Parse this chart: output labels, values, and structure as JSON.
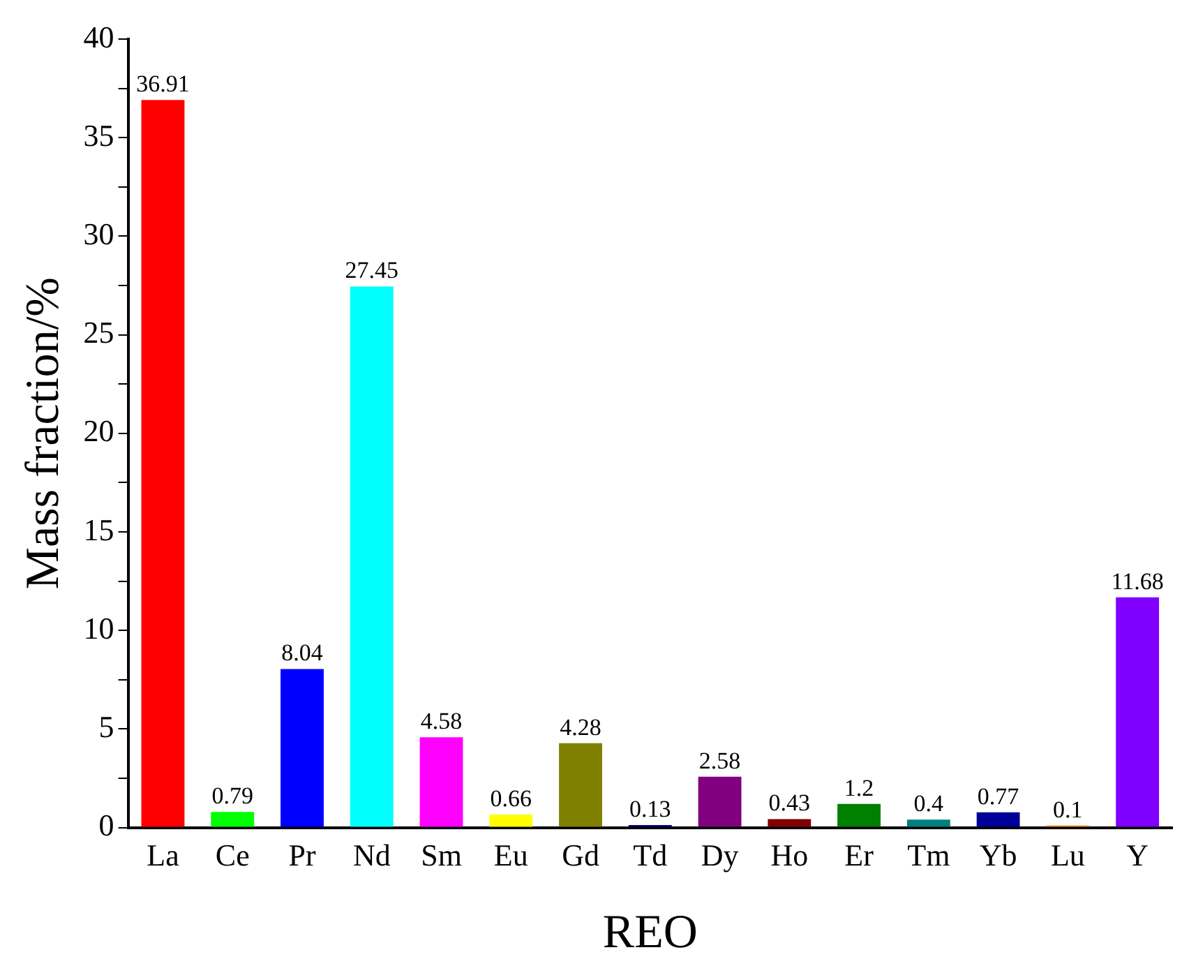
{
  "chart_data": {
    "type": "bar",
    "xlabel": "REO",
    "ylabel": "Mass fraction/%",
    "categories": [
      "La",
      "Ce",
      "Pr",
      "Nd",
      "Sm",
      "Eu",
      "Gd",
      "Td",
      "Dy",
      "Ho",
      "Er",
      "Tm",
      "Yb",
      "Lu",
      "Y"
    ],
    "values": [
      36.91,
      0.79,
      8.04,
      27.45,
      4.58,
      0.66,
      4.28,
      0.13,
      2.58,
      0.43,
      1.2,
      0.4,
      0.77,
      0.1,
      11.68
    ],
    "colors": [
      "#ff0000",
      "#00ff00",
      "#0000ff",
      "#00ffff",
      "#ff00ff",
      "#ffff00",
      "#808000",
      "#000080",
      "#800080",
      "#800000",
      "#008000",
      "#008080",
      "#000099",
      "#ff8000",
      "#8000ff"
    ],
    "ylim": [
      0,
      40
    ],
    "yticks": [
      0,
      {
        "value": 2.5,
        "label": null
      },
      5,
      {
        "value": 7.5,
        "label": null
      },
      10,
      {
        "value": 12.5,
        "label": null
      },
      15,
      {
        "value": 17.5,
        "label": null
      },
      20,
      {
        "value": 22.5,
        "label": null
      },
      25,
      {
        "value": 27.5,
        "label": null
      },
      30,
      {
        "value": 32.5,
        "label": null
      },
      35,
      {
        "value": 37.5,
        "label": null
      },
      40
    ],
    "data_labels": true,
    "grid": false,
    "legend": false
  }
}
